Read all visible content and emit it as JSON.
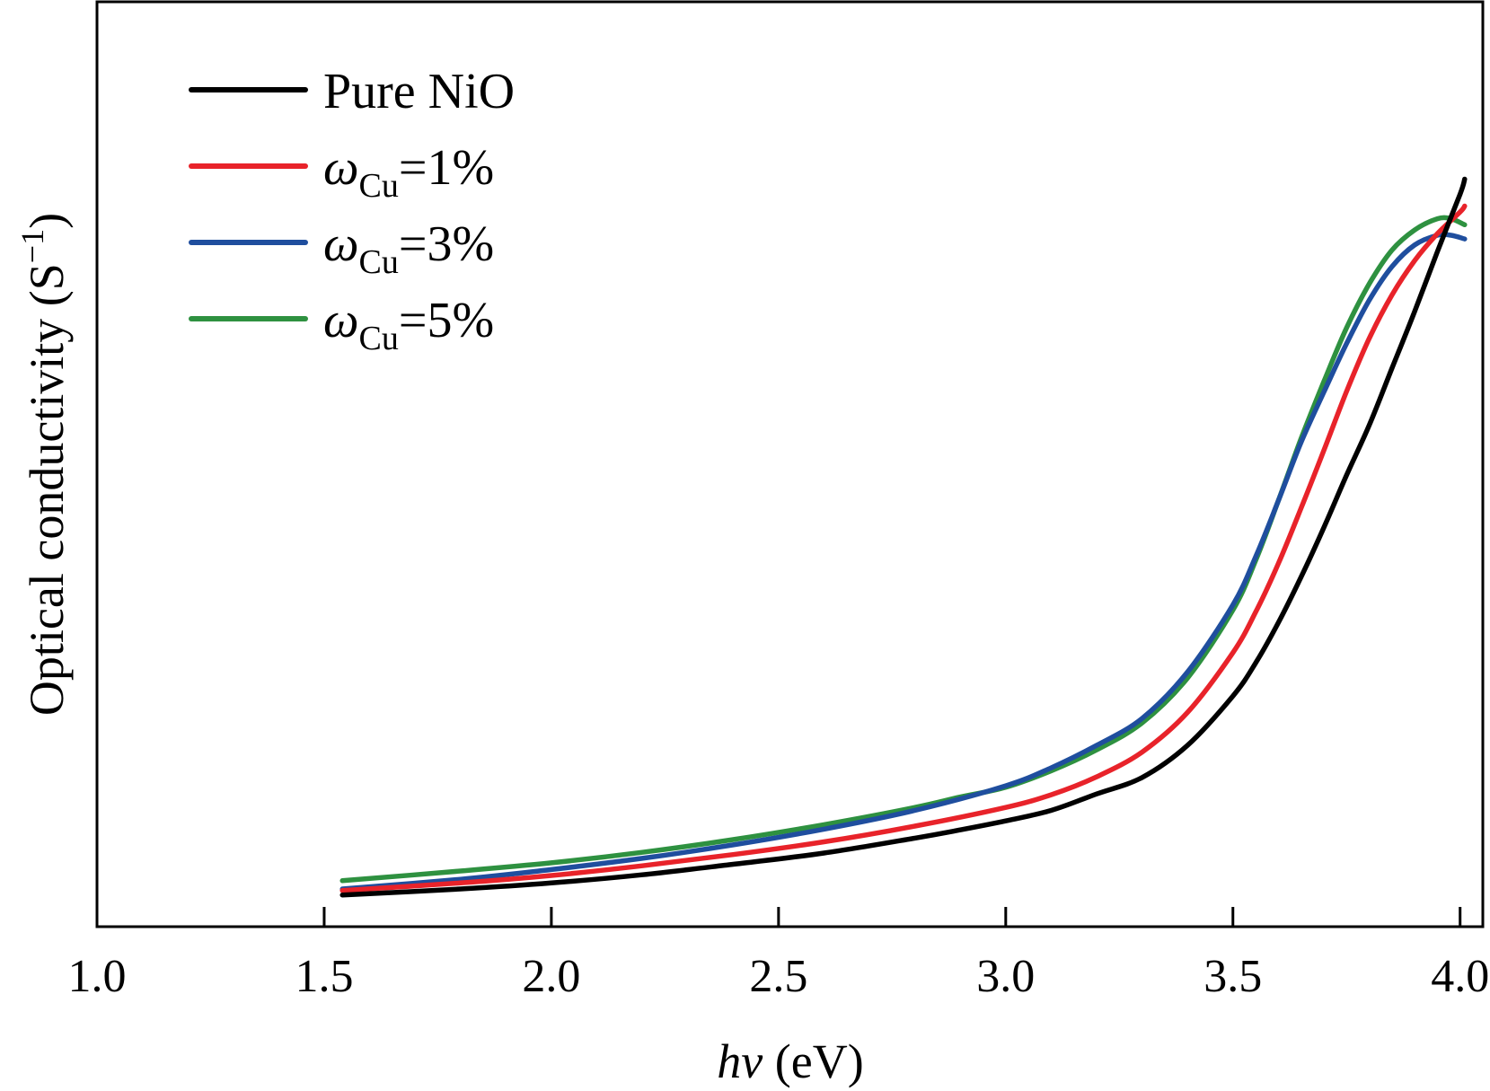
{
  "chart_data": {
    "type": "line",
    "title": "",
    "xlabel": {
      "italic": "hv",
      "rest": " (eV)"
    },
    "ylabel": {
      "text": "Optical conductivity (S",
      "sup": "−1",
      "close": ")"
    },
    "xlim": [
      1.0,
      4.05
    ],
    "ylim": [
      0,
      1
    ],
    "xticks": [
      "1.0",
      "1.5",
      "2.0",
      "2.5",
      "3.0",
      "3.5",
      "4.0"
    ],
    "xtick_values": [
      1.0,
      1.5,
      2.0,
      2.5,
      3.0,
      3.5,
      4.0
    ],
    "y_tick_labels_shown": false,
    "grid": false,
    "legend_position": "top-left",
    "series": [
      {
        "name": "Pure NiO",
        "legend": {
          "plain": "Pure NiO"
        },
        "color": "#000000",
        "x": [
          1.54,
          1.8,
          2.0,
          2.2,
          2.4,
          2.6,
          2.8,
          2.9,
          3.0,
          3.1,
          3.2,
          3.3,
          3.4,
          3.5,
          3.55,
          3.6,
          3.65,
          3.7,
          3.75,
          3.8,
          3.85,
          3.9,
          3.95,
          4.0,
          4.01
        ],
        "y": [
          0.028,
          0.036,
          0.044,
          0.055,
          0.069,
          0.084,
          0.104,
          0.115,
          0.127,
          0.141,
          0.163,
          0.185,
          0.228,
          0.294,
          0.338,
          0.392,
          0.453,
          0.519,
          0.589,
          0.656,
          0.732,
          0.808,
          0.888,
          0.965,
          0.985
        ]
      },
      {
        "name": "ωCu=1%",
        "legend": {
          "symbol": "ω",
          "sub": "Cu",
          "rest": "=1%"
        },
        "color": "#e8232a",
        "x": [
          1.54,
          1.8,
          2.0,
          2.2,
          2.4,
          2.6,
          2.8,
          3.0,
          3.1,
          3.2,
          3.3,
          3.4,
          3.5,
          3.55,
          3.6,
          3.65,
          3.7,
          3.75,
          3.8,
          3.85,
          3.9,
          3.95,
          4.0,
          4.01
        ],
        "y": [
          0.034,
          0.044,
          0.054,
          0.067,
          0.082,
          0.099,
          0.12,
          0.145,
          0.162,
          0.186,
          0.219,
          0.272,
          0.352,
          0.406,
          0.471,
          0.545,
          0.622,
          0.701,
          0.772,
          0.83,
          0.876,
          0.912,
          0.941,
          0.949
        ]
      },
      {
        "name": "ωCu=3%",
        "legend": {
          "symbol": "ω",
          "sub": "Cu",
          "rest": "=3%"
        },
        "color": "#1f4e9e",
        "x": [
          1.54,
          1.8,
          2.0,
          2.2,
          2.4,
          2.6,
          2.8,
          3.0,
          3.1,
          3.2,
          3.3,
          3.4,
          3.5,
          3.55,
          3.6,
          3.65,
          3.7,
          3.75,
          3.8,
          3.85,
          3.9,
          3.95,
          3.98,
          4.01
        ],
        "y": [
          0.036,
          0.049,
          0.062,
          0.077,
          0.095,
          0.116,
          0.141,
          0.174,
          0.198,
          0.228,
          0.264,
          0.326,
          0.416,
          0.48,
          0.555,
          0.633,
          0.7,
          0.765,
          0.823,
          0.868,
          0.897,
          0.91,
          0.91,
          0.905
        ]
      },
      {
        "name": "ωCu=5%",
        "legend": {
          "symbol": "ω",
          "sub": "Cu",
          "rest": "=5%"
        },
        "color": "#2e9140",
        "x": [
          1.54,
          1.8,
          2.0,
          2.2,
          2.4,
          2.6,
          2.8,
          2.9,
          3.0,
          3.1,
          3.2,
          3.3,
          3.4,
          3.5,
          3.55,
          3.6,
          3.65,
          3.7,
          3.75,
          3.8,
          3.85,
          3.9,
          3.95,
          3.98,
          4.01
        ],
        "y": [
          0.047,
          0.06,
          0.071,
          0.085,
          0.102,
          0.122,
          0.145,
          0.159,
          0.172,
          0.194,
          0.222,
          0.258,
          0.318,
          0.409,
          0.475,
          0.555,
          0.638,
          0.714,
          0.786,
          0.845,
          0.89,
          0.917,
          0.932,
          0.932,
          0.924
        ]
      }
    ]
  }
}
